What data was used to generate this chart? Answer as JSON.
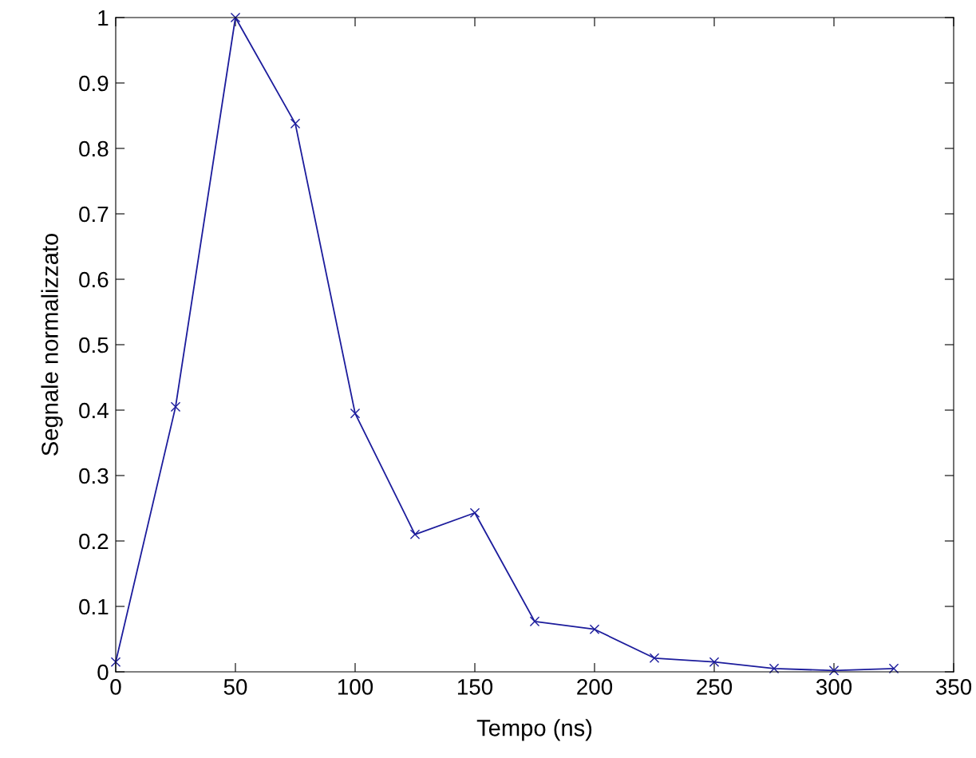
{
  "chart_data": {
    "type": "line",
    "xlabel": "Tempo (ns)",
    "ylabel": "Segnale normalizzato",
    "x": [
      0,
      25,
      50,
      75,
      100,
      125,
      150,
      175,
      200,
      225,
      250,
      275,
      300,
      325
    ],
    "series": [
      {
        "color": "#1c1c9c",
        "values": [
          0.015,
          0.405,
          1.0,
          0.838,
          0.395,
          0.21,
          0.243,
          0.077,
          0.065,
          0.021,
          0.015,
          0.005,
          0.002,
          0.005
        ]
      }
    ],
    "xlim": [
      0,
      350
    ],
    "xticks": [
      0,
      50,
      100,
      150,
      200,
      250,
      300,
      350
    ],
    "ylim": [
      0,
      1
    ],
    "yticks": [
      0,
      0.1,
      0.2,
      0.3,
      0.4,
      0.5,
      0.6,
      0.7,
      0.8,
      0.9,
      1
    ],
    "grid": false,
    "marker": "cross",
    "line_style": "solid"
  }
}
